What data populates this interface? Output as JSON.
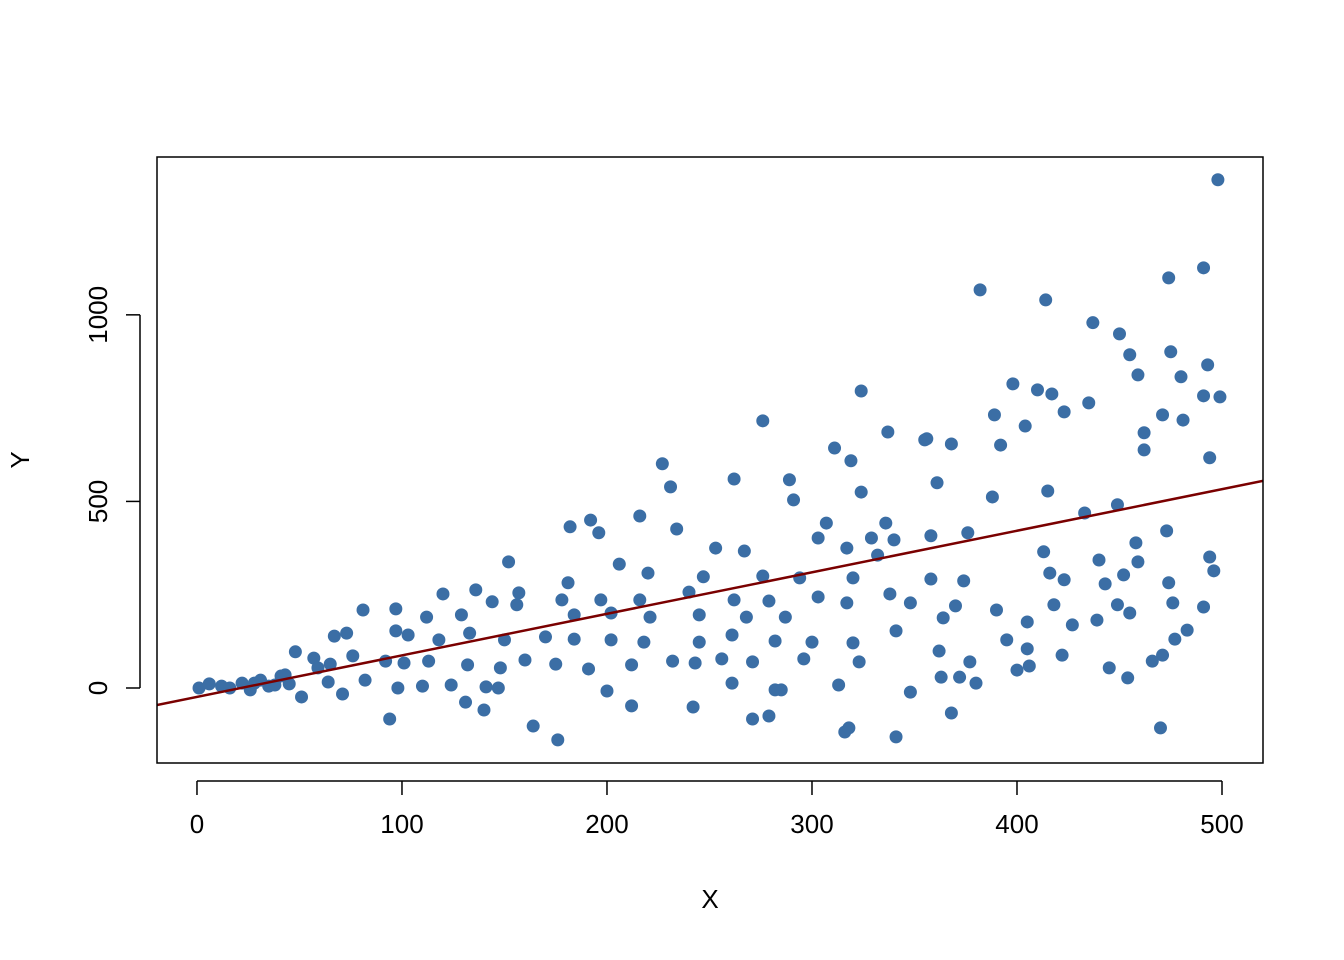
{
  "chart_data": {
    "type": "scatter",
    "xlabel": "X",
    "ylabel": "Y",
    "color": "#3b6ea5",
    "xlim": [
      -19.5,
      520
    ],
    "ylim": [
      -201,
      1423
    ],
    "xticks": [
      0,
      100,
      200,
      300,
      400,
      500
    ],
    "yticks": [
      0,
      500,
      1000
    ],
    "x": [
      498,
      491,
      474,
      382,
      414,
      437,
      450,
      455,
      475,
      459,
      480,
      493,
      324,
      398,
      410,
      417,
      435,
      491,
      499,
      471,
      481,
      423,
      276,
      389,
      404,
      337,
      356,
      311,
      319,
      355,
      368,
      392,
      462,
      462,
      494,
      227,
      262,
      289,
      231,
      291,
      324,
      361,
      388,
      415,
      473,
      433,
      449,
      196,
      192,
      182,
      216,
      234,
      253,
      267,
      307,
      303,
      317,
      329,
      336,
      340,
      358,
      376,
      413,
      440,
      458,
      459,
      494,
      152,
      181,
      206,
      220,
      247,
      276,
      294,
      320,
      332,
      358,
      374,
      416,
      423,
      443,
      452,
      474,
      496,
      120,
      136,
      157,
      144,
      178,
      197,
      216,
      240,
      262,
      279,
      303,
      317,
      338,
      348,
      370,
      390,
      405,
      418,
      449,
      476,
      491,
      81,
      97,
      112,
      129,
      156,
      184,
      202,
      221,
      245,
      268,
      287,
      364,
      427,
      439,
      455,
      483,
      73,
      67,
      97,
      103,
      118,
      133,
      150,
      170,
      184,
      202,
      218,
      245,
      261,
      282,
      300,
      320,
      341,
      395,
      405,
      422,
      477,
      471,
      48,
      57,
      65,
      76,
      92,
      101,
      113,
      132,
      148,
      160,
      175,
      191,
      212,
      232,
      243,
      256,
      271,
      296,
      323,
      362,
      377,
      400,
      406,
      445,
      454,
      466,
      43,
      31,
      22,
      12,
      1,
      6,
      16,
      26,
      35,
      45,
      64,
      82,
      98,
      110,
      124,
      141,
      147,
      200,
      261,
      313,
      363,
      372,
      380,
      51,
      71,
      94,
      131,
      140,
      164,
      176,
      212,
      242,
      271,
      279,
      282,
      285,
      316,
      318,
      341,
      348,
      368,
      470,
      41,
      59,
      28,
      38
    ],
    "values": [
      1362,
      1126,
      1099,
      1067,
      1040,
      979,
      949,
      893,
      901,
      839,
      834,
      866,
      796,
      815,
      799,
      788,
      764,
      783,
      780,
      732,
      718,
      740,
      716,
      732,
      702,
      686,
      668,
      643,
      609,
      665,
      654,
      651,
      684,
      638,
      617,
      601,
      560,
      558,
      539,
      504,
      525,
      550,
      512,
      528,
      421,
      469,
      491,
      416,
      450,
      432,
      461,
      426,
      375,
      367,
      442,
      402,
      375,
      402,
      442,
      397,
      408,
      416,
      365,
      343,
      389,
      338,
      351,
      338,
      282,
      332,
      308,
      298,
      300,
      295,
      295,
      356,
      292,
      287,
      308,
      290,
      279,
      303,
      282,
      314,
      252,
      263,
      255,
      231,
      236,
      236,
      236,
      257,
      236,
      233,
      244,
      228,
      252,
      228,
      220,
      209,
      177,
      223,
      223,
      228,
      217,
      209,
      212,
      190,
      196,
      223,
      196,
      201,
      190,
      196,
      190,
      190,
      188,
      169,
      182,
      201,
      155,
      147,
      139,
      153,
      142,
      129,
      147,
      129,
      137,
      131,
      129,
      123,
      123,
      142,
      126,
      123,
      121,
      153,
      129,
      105,
      88,
      131,
      88,
      97,
      80,
      64,
      86,
      72,
      67,
      72,
      62,
      54,
      75,
      64,
      51,
      62,
      72,
      67,
      78,
      70,
      78,
      70,
      99,
      70,
      48,
      59,
      54,
      27,
      72,
      35,
      21,
      13,
      5,
      0,
      11,
      0,
      -5,
      5,
      11,
      16,
      21,
      0,
      5,
      8,
      3,
      0,
      -8,
      13,
      8,
      29,
      29,
      13,
      -24,
      -16,
      -83,
      -38,
      -59,
      -102,
      -139,
      -48,
      -51,
      -83,
      -75,
      -5,
      -5,
      -118,
      -107,
      -131,
      -11,
      -67,
      -107,
      32,
      54,
      13,
      8
    ],
    "trend_line": {
      "x": [
        -19.5,
        520
      ],
      "values": [
        -45.6,
        555
      ],
      "color": "#7a0000"
    }
  }
}
